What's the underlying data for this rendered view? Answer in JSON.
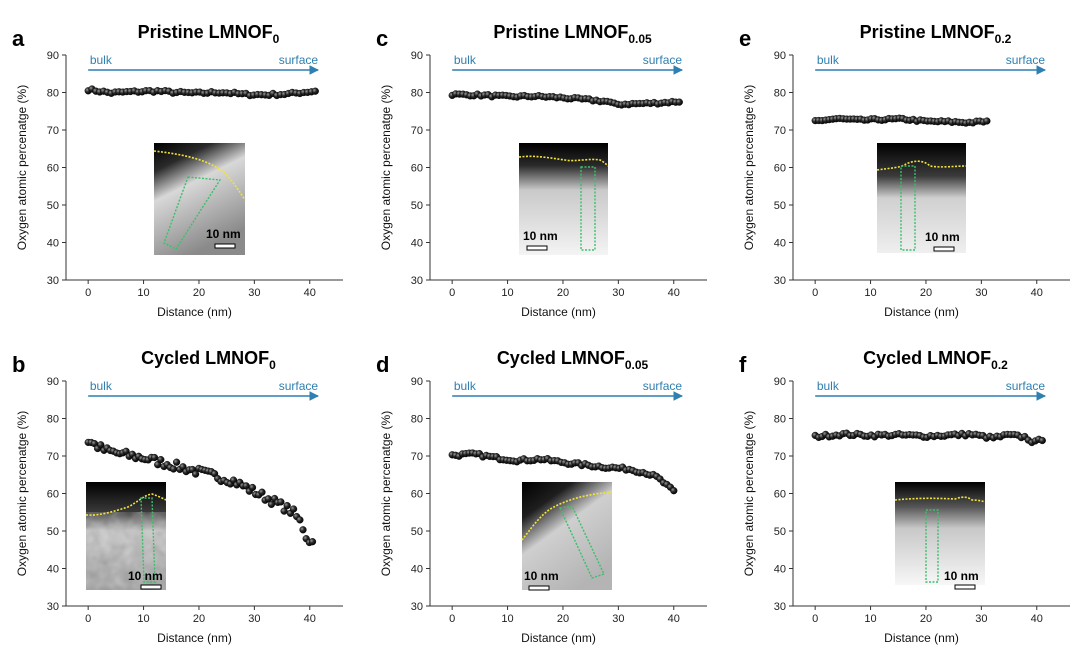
{
  "figure": {
    "x_label": "Distance (nm)",
    "y_label": "Oxygen atomic percenatge (%)",
    "direction_start": "bulk",
    "direction_end": "surface",
    "scale_bar": "10 nm",
    "colors": {
      "marker": "#111111",
      "arrow": "#2f7fb0",
      "surface_trace": "#f2e33a",
      "line_profile_box": "#3cbf6a"
    }
  },
  "chart_data": [
    {
      "panel": "a",
      "type": "scatter",
      "title": "Pristine LMNOF",
      "title_sub": "0",
      "xlabel": "Distance (nm)",
      "ylabel": "Oxygen atomic percenatge (%)",
      "xlim": [
        -4,
        46
      ],
      "ylim": [
        30,
        90
      ],
      "xticks": [
        "0",
        "10",
        "20",
        "30",
        "40"
      ],
      "yticks": [
        "30",
        "40",
        "50",
        "60",
        "70",
        "80",
        "90"
      ],
      "x_range": [
        0,
        41
      ],
      "trend": [
        [
          0,
          80.8
        ],
        [
          4,
          79.9
        ],
        [
          8,
          80.2
        ],
        [
          12,
          80.4
        ],
        [
          16,
          80.0
        ],
        [
          20,
          79.8
        ],
        [
          24,
          80.1
        ],
        [
          28,
          79.5
        ],
        [
          32,
          79.4
        ],
        [
          36,
          79.6
        ],
        [
          41,
          80.4
        ]
      ],
      "noise": 0.35,
      "n_points": 60
    },
    {
      "panel": "b",
      "type": "scatter",
      "title": "Cycled LMNOF",
      "title_sub": "0",
      "xlabel": "Distance (nm)",
      "ylabel": "Oxygen atomic percenatge (%)",
      "xlim": [
        -4,
        46
      ],
      "ylim": [
        30,
        90
      ],
      "xticks": [
        "0",
        "10",
        "20",
        "30",
        "40"
      ],
      "yticks": [
        "30",
        "40",
        "50",
        "60",
        "70",
        "80",
        "90"
      ],
      "x_range": [
        0,
        40.5
      ],
      "trend": [
        [
          0,
          74.0
        ],
        [
          3,
          71.5
        ],
        [
          6,
          70.5
        ],
        [
          10,
          69.5
        ],
        [
          14,
          68.0
        ],
        [
          18,
          66.5
        ],
        [
          22,
          65.0
        ],
        [
          26,
          63.5
        ],
        [
          30,
          60.5
        ],
        [
          34,
          57.5
        ],
        [
          37,
          55.0
        ],
        [
          38.5,
          52.0
        ],
        [
          39.5,
          48.0
        ],
        [
          40.5,
          47.0
        ]
      ],
      "noise": 1.1,
      "n_points": 72
    },
    {
      "panel": "c",
      "type": "scatter",
      "title": "Pristine LMNOF",
      "title_sub": "0.05",
      "xlabel": "Distance (nm)",
      "ylabel": "Oxygen atomic percenatge (%)",
      "xlim": [
        -4,
        46
      ],
      "ylim": [
        30,
        90
      ],
      "xticks": [
        "0",
        "10",
        "20",
        "30",
        "40"
      ],
      "yticks": [
        "30",
        "40",
        "50",
        "60",
        "70",
        "80",
        "90"
      ],
      "x_range": [
        0,
        41
      ],
      "trend": [
        [
          0,
          79.5
        ],
        [
          5,
          79.3
        ],
        [
          10,
          78.9
        ],
        [
          15,
          79.0
        ],
        [
          20,
          78.6
        ],
        [
          25,
          78.0
        ],
        [
          28,
          77.6
        ],
        [
          29.5,
          76.8
        ],
        [
          33,
          77.0
        ],
        [
          37,
          77.2
        ],
        [
          41,
          77.6
        ]
      ],
      "noise": 0.3,
      "n_points": 64
    },
    {
      "panel": "d",
      "type": "scatter",
      "title": "Cycled LMNOF",
      "title_sub": "0.05",
      "xlabel": "Distance (nm)",
      "ylabel": "Oxygen atomic percenatge (%)",
      "xlim": [
        -4,
        46
      ],
      "ylim": [
        30,
        90
      ],
      "xticks": [
        "0",
        "10",
        "20",
        "30",
        "40"
      ],
      "yticks": [
        "30",
        "40",
        "50",
        "60",
        "70",
        "80",
        "90"
      ],
      "x_range": [
        0,
        40
      ],
      "trend": [
        [
          0,
          70.2
        ],
        [
          4,
          70.5
        ],
        [
          8,
          69.5
        ],
        [
          12,
          68.8
        ],
        [
          16,
          69.2
        ],
        [
          20,
          68.3
        ],
        [
          24,
          67.6
        ],
        [
          28,
          67.0
        ],
        [
          32,
          66.5
        ],
        [
          35,
          65.5
        ],
        [
          37,
          64.3
        ],
        [
          38.5,
          62.5
        ],
        [
          40,
          60.5
        ]
      ],
      "noise": 0.4,
      "n_points": 66
    },
    {
      "panel": "e",
      "type": "scatter",
      "title": "Pristine LMNOF",
      "title_sub": "0.2",
      "xlabel": "Distance (nm)",
      "ylabel": "Oxygen atomic percenatge (%)",
      "xlim": [
        -4,
        46
      ],
      "ylim": [
        30,
        90
      ],
      "xticks": [
        "0",
        "10",
        "20",
        "30",
        "40"
      ],
      "yticks": [
        "30",
        "40",
        "50",
        "60",
        "70",
        "80",
        "90"
      ],
      "x_range": [
        0,
        31
      ],
      "trend": [
        [
          0,
          72.4
        ],
        [
          4,
          73.0
        ],
        [
          8,
          72.6
        ],
        [
          12,
          72.8
        ],
        [
          16,
          72.9
        ],
        [
          20,
          72.3
        ],
        [
          24,
          72.2
        ],
        [
          28,
          72.0
        ],
        [
          31,
          72.3
        ]
      ],
      "noise": 0.3,
      "n_points": 50
    },
    {
      "panel": "f",
      "type": "scatter",
      "title": "Cycled LMNOF",
      "title_sub": "0.2",
      "xlabel": "Distance (nm)",
      "ylabel": "Oxygen atomic percenatge (%)",
      "xlim": [
        -4,
        46
      ],
      "ylim": [
        30,
        90
      ],
      "xticks": [
        "0",
        "10",
        "20",
        "30",
        "40"
      ],
      "yticks": [
        "30",
        "40",
        "50",
        "60",
        "70",
        "80",
        "90"
      ],
      "x_range": [
        0,
        41
      ],
      "trend": [
        [
          0,
          75.2
        ],
        [
          5,
          75.8
        ],
        [
          10,
          75.5
        ],
        [
          15,
          75.6
        ],
        [
          20,
          75.3
        ],
        [
          25,
          75.6
        ],
        [
          28,
          75.8
        ],
        [
          32,
          74.8
        ],
        [
          35,
          75.6
        ],
        [
          38,
          75.0
        ],
        [
          39.5,
          73.5
        ],
        [
          41,
          74.5
        ]
      ],
      "noise": 0.4,
      "n_points": 66
    }
  ]
}
